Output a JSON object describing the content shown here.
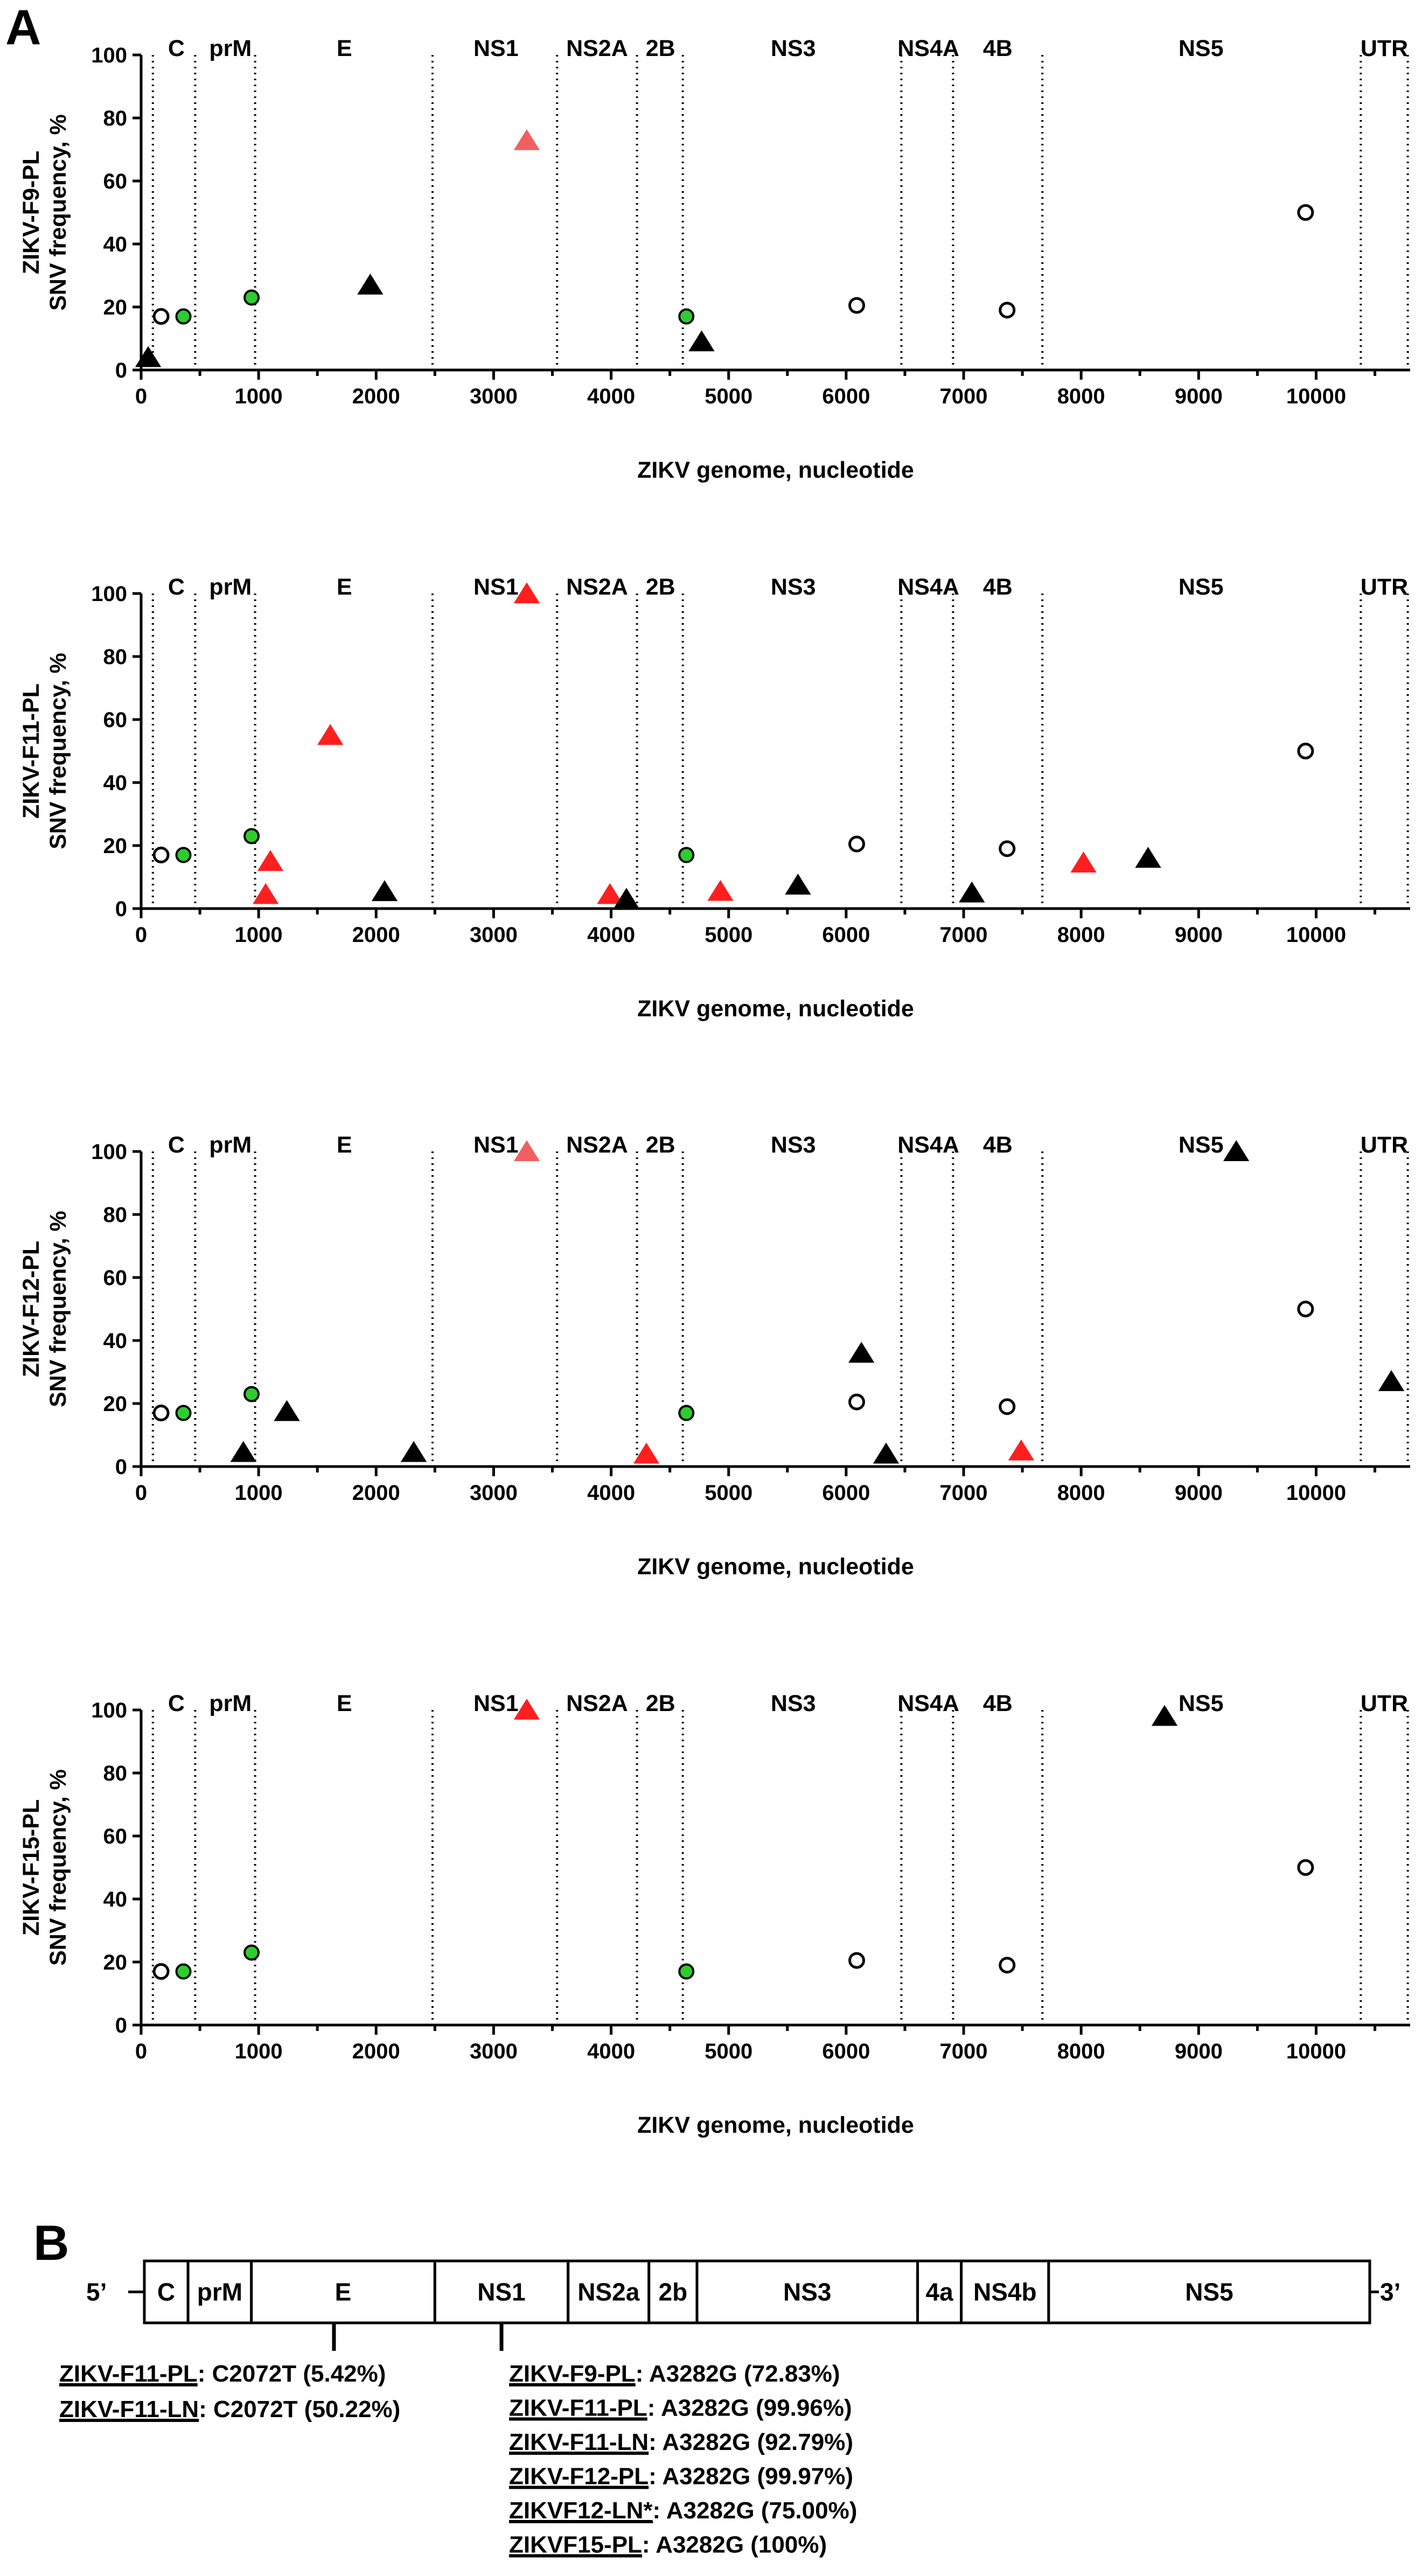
{
  "figure": {
    "panel_a_letter": "A",
    "panel_b_letter": "B"
  },
  "chart_data": [
    {
      "type": "scatter",
      "ylabel_line1": "ZIKV-F9-PL",
      "ylabel_line2": "SNV frequency, %",
      "xlabel": "ZIKV genome, nucleotide",
      "xlim": [
        0,
        10800
      ],
      "ylim": [
        0,
        100
      ],
      "xticks": [
        0,
        1000,
        2000,
        3000,
        4000,
        5000,
        6000,
        7000,
        8000,
        9000,
        10000
      ],
      "yticks": [
        0,
        20,
        40,
        60,
        80,
        100
      ],
      "region_boundaries": [
        100,
        460,
        970,
        2480,
        3540,
        4220,
        4610,
        6470,
        6910,
        7670,
        10380,
        10780
      ],
      "regions": [
        {
          "label": "C",
          "x": 300
        },
        {
          "label": "prM",
          "x": 760
        },
        {
          "label": "E",
          "x": 1730
        },
        {
          "label": "NS1",
          "x": 3020
        },
        {
          "label": "NS2A",
          "x": 3880
        },
        {
          "label": "2B",
          "x": 4420
        },
        {
          "label": "NS3",
          "x": 5550
        },
        {
          "label": "NS4A",
          "x": 6700
        },
        {
          "label": "4B",
          "x": 7290
        },
        {
          "label": "NS5",
          "x": 9020
        },
        {
          "label": "UTR",
          "x": 10580
        }
      ],
      "points": [
        {
          "x": 60,
          "y": 4,
          "marker": "triangle",
          "color": "#000000"
        },
        {
          "x": 170,
          "y": 17,
          "marker": "circle-open",
          "color": "#000000"
        },
        {
          "x": 360,
          "y": 17,
          "marker": "circle",
          "color": "#2ecc2e"
        },
        {
          "x": 940,
          "y": 23,
          "marker": "circle",
          "color": "#2ecc2e"
        },
        {
          "x": 1950,
          "y": 27,
          "marker": "triangle",
          "color": "#000000"
        },
        {
          "x": 3282,
          "y": 72.83,
          "marker": "triangle",
          "color": "#f06060"
        },
        {
          "x": 4640,
          "y": 17,
          "marker": "circle",
          "color": "#2ecc2e"
        },
        {
          "x": 4770,
          "y": 9,
          "marker": "triangle",
          "color": "#000000"
        },
        {
          "x": 6090,
          "y": 20.5,
          "marker": "circle-open",
          "color": "#000000"
        },
        {
          "x": 7370,
          "y": 19,
          "marker": "circle-open",
          "color": "#000000"
        },
        {
          "x": 9910,
          "y": 50,
          "marker": "circle-open",
          "color": "#000000"
        }
      ]
    },
    {
      "type": "scatter",
      "ylabel_line1": "ZIKV-F11-PL",
      "ylabel_line2": "SNV frequency, %",
      "xlabel": "ZIKV genome, nucleotide",
      "xlim": [
        0,
        10800
      ],
      "ylim": [
        0,
        100
      ],
      "xticks": [
        0,
        1000,
        2000,
        3000,
        4000,
        5000,
        6000,
        7000,
        8000,
        9000,
        10000
      ],
      "yticks": [
        0,
        20,
        40,
        60,
        80,
        100
      ],
      "region_boundaries": [
        100,
        460,
        970,
        2480,
        3540,
        4220,
        4610,
        6470,
        6910,
        7670,
        10380,
        10780
      ],
      "regions": [
        {
          "label": "C",
          "x": 300
        },
        {
          "label": "prM",
          "x": 760
        },
        {
          "label": "E",
          "x": 1730
        },
        {
          "label": "NS1",
          "x": 3020
        },
        {
          "label": "NS2A",
          "x": 3880
        },
        {
          "label": "2B",
          "x": 4420
        },
        {
          "label": "NS3",
          "x": 5550
        },
        {
          "label": "NS4A",
          "x": 6700
        },
        {
          "label": "4B",
          "x": 7290
        },
        {
          "label": "NS5",
          "x": 9020
        },
        {
          "label": "UTR",
          "x": 10580
        }
      ],
      "points": [
        {
          "x": 170,
          "y": 17,
          "marker": "circle-open",
          "color": "#000000"
        },
        {
          "x": 360,
          "y": 17,
          "marker": "circle",
          "color": "#2ecc2e"
        },
        {
          "x": 940,
          "y": 23,
          "marker": "circle",
          "color": "#2ecc2e"
        },
        {
          "x": 1060,
          "y": 4.5,
          "marker": "triangle",
          "color": "#ff1f1f"
        },
        {
          "x": 1100,
          "y": 15,
          "marker": "triangle",
          "color": "#ff1f1f"
        },
        {
          "x": 1610,
          "y": 55,
          "marker": "triangle",
          "color": "#ff1f1f"
        },
        {
          "x": 2072,
          "y": 5.42,
          "marker": "triangle",
          "color": "#000000"
        },
        {
          "x": 3282,
          "y": 99.96,
          "marker": "triangle",
          "color": "#ff1f1f"
        },
        {
          "x": 3990,
          "y": 4.5,
          "marker": "triangle",
          "color": "#ff1f1f"
        },
        {
          "x": 4130,
          "y": 3,
          "marker": "triangle",
          "color": "#000000"
        },
        {
          "x": 4640,
          "y": 17,
          "marker": "circle",
          "color": "#2ecc2e"
        },
        {
          "x": 4930,
          "y": 5.5,
          "marker": "triangle",
          "color": "#ff1f1f"
        },
        {
          "x": 5590,
          "y": 7.5,
          "marker": "triangle",
          "color": "#000000"
        },
        {
          "x": 6090,
          "y": 20.5,
          "marker": "circle-open",
          "color": "#000000"
        },
        {
          "x": 7070,
          "y": 5,
          "marker": "triangle",
          "color": "#000000"
        },
        {
          "x": 7370,
          "y": 19,
          "marker": "circle-open",
          "color": "#000000"
        },
        {
          "x": 8020,
          "y": 14.5,
          "marker": "triangle",
          "color": "#ff1f1f"
        },
        {
          "x": 8570,
          "y": 16,
          "marker": "triangle",
          "color": "#000000"
        },
        {
          "x": 9910,
          "y": 50,
          "marker": "circle-open",
          "color": "#000000"
        }
      ]
    },
    {
      "type": "scatter",
      "ylabel_line1": "ZIKV-F12-PL",
      "ylabel_line2": "SNV frequency, %",
      "xlabel": "ZIKV genome, nucleotide",
      "xlim": [
        0,
        10800
      ],
      "ylim": [
        0,
        100
      ],
      "xticks": [
        0,
        1000,
        2000,
        3000,
        4000,
        5000,
        6000,
        7000,
        8000,
        9000,
        10000
      ],
      "yticks": [
        0,
        20,
        40,
        60,
        80,
        100
      ],
      "region_boundaries": [
        100,
        460,
        970,
        2480,
        3540,
        4220,
        4610,
        6470,
        6910,
        7670,
        10380,
        10780
      ],
      "regions": [
        {
          "label": "C",
          "x": 300
        },
        {
          "label": "prM",
          "x": 760
        },
        {
          "label": "E",
          "x": 1730
        },
        {
          "label": "NS1",
          "x": 3020
        },
        {
          "label": "NS2A",
          "x": 3880
        },
        {
          "label": "2B",
          "x": 4420
        },
        {
          "label": "NS3",
          "x": 5550
        },
        {
          "label": "NS4A",
          "x": 6700
        },
        {
          "label": "4B",
          "x": 7290
        },
        {
          "label": "NS5",
          "x": 9020
        },
        {
          "label": "UTR",
          "x": 10580
        }
      ],
      "points": [
        {
          "x": 170,
          "y": 17,
          "marker": "circle-open",
          "color": "#000000"
        },
        {
          "x": 360,
          "y": 17,
          "marker": "circle",
          "color": "#2ecc2e"
        },
        {
          "x": 870,
          "y": 4.5,
          "marker": "triangle",
          "color": "#000000"
        },
        {
          "x": 940,
          "y": 23,
          "marker": "circle",
          "color": "#2ecc2e"
        },
        {
          "x": 1240,
          "y": 17.5,
          "marker": "triangle",
          "color": "#000000"
        },
        {
          "x": 2320,
          "y": 4.5,
          "marker": "triangle",
          "color": "#000000"
        },
        {
          "x": 3282,
          "y": 99.97,
          "marker": "triangle",
          "color": "#f06060"
        },
        {
          "x": 4300,
          "y": 4,
          "marker": "triangle",
          "color": "#ff1f1f"
        },
        {
          "x": 4640,
          "y": 17,
          "marker": "circle",
          "color": "#2ecc2e"
        },
        {
          "x": 6090,
          "y": 20.5,
          "marker": "circle-open",
          "color": "#000000"
        },
        {
          "x": 6130,
          "y": 36,
          "marker": "triangle",
          "color": "#000000"
        },
        {
          "x": 6340,
          "y": 4,
          "marker": "triangle",
          "color": "#000000"
        },
        {
          "x": 7370,
          "y": 19,
          "marker": "circle-open",
          "color": "#000000"
        },
        {
          "x": 7490,
          "y": 5,
          "marker": "triangle",
          "color": "#ff1f1f"
        },
        {
          "x": 9320,
          "y": 100,
          "marker": "triangle",
          "color": "#000000"
        },
        {
          "x": 9910,
          "y": 50,
          "marker": "circle-open",
          "color": "#000000"
        },
        {
          "x": 10640,
          "y": 27,
          "marker": "triangle",
          "color": "#000000"
        }
      ]
    },
    {
      "type": "scatter",
      "ylabel_line1": "ZIKV-F15-PL",
      "ylabel_line2": "SNV frequency, %",
      "xlabel": "ZIKV genome, nucleotide",
      "xlim": [
        0,
        10800
      ],
      "ylim": [
        0,
        100
      ],
      "xticks": [
        0,
        1000,
        2000,
        3000,
        4000,
        5000,
        6000,
        7000,
        8000,
        9000,
        10000
      ],
      "yticks": [
        0,
        20,
        40,
        60,
        80,
        100
      ],
      "region_boundaries": [
        100,
        460,
        970,
        2480,
        3540,
        4220,
        4610,
        6470,
        6910,
        7670,
        10380,
        10780
      ],
      "regions": [
        {
          "label": "C",
          "x": 300
        },
        {
          "label": "prM",
          "x": 760
        },
        {
          "label": "E",
          "x": 1730
        },
        {
          "label": "NS1",
          "x": 3020
        },
        {
          "label": "NS2A",
          "x": 3880
        },
        {
          "label": "2B",
          "x": 4420
        },
        {
          "label": "NS3",
          "x": 5550
        },
        {
          "label": "NS4A",
          "x": 6700
        },
        {
          "label": "4B",
          "x": 7290
        },
        {
          "label": "NS5",
          "x": 9020
        },
        {
          "label": "UTR",
          "x": 10580
        }
      ],
      "points": [
        {
          "x": 170,
          "y": 17,
          "marker": "circle-open",
          "color": "#000000"
        },
        {
          "x": 360,
          "y": 17,
          "marker": "circle",
          "color": "#2ecc2e"
        },
        {
          "x": 940,
          "y": 23,
          "marker": "circle",
          "color": "#2ecc2e"
        },
        {
          "x": 3282,
          "y": 100,
          "marker": "triangle",
          "color": "#ff1f1f"
        },
        {
          "x": 4640,
          "y": 17,
          "marker": "circle",
          "color": "#2ecc2e"
        },
        {
          "x": 6090,
          "y": 20.5,
          "marker": "circle-open",
          "color": "#000000"
        },
        {
          "x": 7370,
          "y": 19,
          "marker": "circle-open",
          "color": "#000000"
        },
        {
          "x": 8710,
          "y": 98,
          "marker": "triangle",
          "color": "#000000"
        },
        {
          "x": 9910,
          "y": 50,
          "marker": "circle-open",
          "color": "#000000"
        }
      ]
    }
  ],
  "genome_map": {
    "five_prime": "5’",
    "three_prime": "3’",
    "segments": [
      {
        "label": "C",
        "span": 1
      },
      {
        "label": "prM",
        "span": 1.45
      },
      {
        "label": "E",
        "span": 4.2
      },
      {
        "label": "NS1",
        "span": 3.05
      },
      {
        "label": "NS2a",
        "span": 1.85
      },
      {
        "label": "2b",
        "span": 1.1
      },
      {
        "label": "NS3",
        "span": 5.05
      },
      {
        "label": "4a",
        "span": 1.0
      },
      {
        "label": "NS4b",
        "span": 2.0
      },
      {
        "label": "NS5",
        "span": 7.35
      }
    ],
    "mutation_sites": [
      {
        "segment": "E",
        "fraction": 0.45
      },
      {
        "segment": "NS1",
        "fraction": 0.5
      }
    ],
    "annotations_e": [
      {
        "sample": "ZIKV-F11-PL",
        "text": ": C2072T (5.42%)"
      },
      {
        "sample": "ZIKV-F11-LN",
        "text": ": C2072T (50.22%)"
      }
    ],
    "annotations_ns1": [
      {
        "sample": "ZIKV-F9-PL",
        "text": ": A3282G (72.83%)"
      },
      {
        "sample": "ZIKV-F11-PL",
        "text": ": A3282G (99.96%)"
      },
      {
        "sample": "ZIKV-F11-LN",
        "text": ": A3282G (92.79%)"
      },
      {
        "sample": "ZIKV-F12-PL",
        "text": ": A3282G (99.97%)"
      },
      {
        "sample": "ZIKVF12-LN*",
        "text": ": A3282G (75.00%)"
      },
      {
        "sample": "ZIKVF15-PL",
        "text": ": A3282G (100%)"
      }
    ]
  }
}
